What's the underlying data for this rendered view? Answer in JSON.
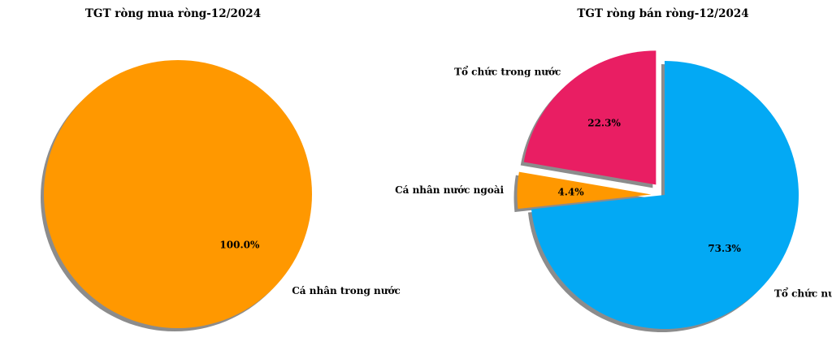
{
  "chart_data": [
    {
      "type": "pie",
      "title": "TGT ròng mua ròng-12/2024",
      "slices": [
        {
          "label": "Cá nhân trong nước",
          "value": 100.0,
          "pct_label": "100.0%",
          "color": "#FF9800",
          "explode": false
        }
      ]
    },
    {
      "type": "pie",
      "title": "TGT ròng bán ròng-12/2024",
      "slices": [
        {
          "label": "Tổ chức trong nước",
          "value": 22.3,
          "pct_label": "22.3%",
          "color": "#E91E63",
          "explode": true
        },
        {
          "label": "Cá nhân nước ngoài",
          "value": 4.4,
          "pct_label": "4.4%",
          "color": "#FF9800",
          "explode": true
        },
        {
          "label": "Tổ chức nước ngoài",
          "value": 73.3,
          "pct_label": "73.3%",
          "color": "#03A9F4",
          "explode": false
        }
      ]
    }
  ]
}
